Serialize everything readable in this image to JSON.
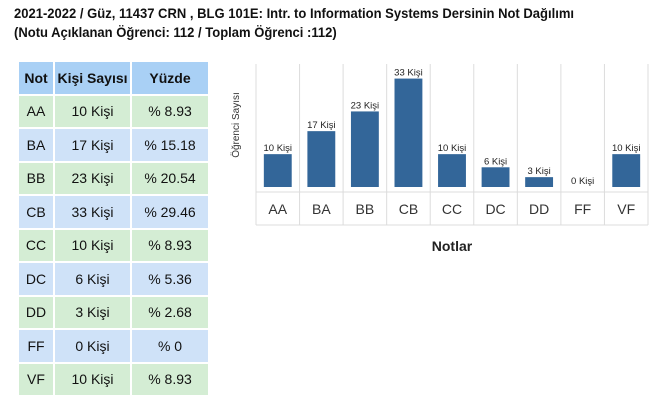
{
  "title": {
    "line1": "2021-2022 / Güz, 11437 CRN , BLG 101E: Intr. to Information Systems Dersinin Not Dağılımı",
    "line2": "(Notu Açıklanan Öğrenci: 112 / Toplam Öğrenci :112)"
  },
  "table": {
    "headers": [
      "Not",
      "Kişi Sayısı",
      "Yüzde"
    ],
    "rows": [
      {
        "grade": "AA",
        "count": "10 Kişi",
        "percent": "% 8.93"
      },
      {
        "grade": "BA",
        "count": "17 Kişi",
        "percent": "% 15.18"
      },
      {
        "grade": "BB",
        "count": "23 Kişi",
        "percent": "% 20.54"
      },
      {
        "grade": "CB",
        "count": "33 Kişi",
        "percent": "% 29.46"
      },
      {
        "grade": "CC",
        "count": "10 Kişi",
        "percent": "% 8.93"
      },
      {
        "grade": "DC",
        "count": "6 Kişi",
        "percent": "% 5.36"
      },
      {
        "grade": "DD",
        "count": "3 Kişi",
        "percent": "% 2.68"
      },
      {
        "grade": "FF",
        "count": "0 Kişi",
        "percent": "% 0"
      },
      {
        "grade": "VF",
        "count": "10 Kişi",
        "percent": "% 8.93"
      }
    ]
  },
  "chart_data": {
    "type": "bar",
    "categories": [
      "AA",
      "BA",
      "BB",
      "CB",
      "CC",
      "DC",
      "DD",
      "FF",
      "VF"
    ],
    "values": [
      10,
      17,
      23,
      33,
      10,
      6,
      3,
      0,
      10
    ],
    "data_labels": [
      "10 Kişi",
      "17 Kişi",
      "23 Kişi",
      "33 Kişi",
      "10 Kişi",
      "6 Kişi",
      "3 Kişi",
      "0 Kişi",
      "10 Kişi"
    ],
    "xlabel": "Notlar",
    "ylabel": "Öğrenci Sayısı",
    "ylim": [
      0,
      35
    ],
    "bar_color": "#336699",
    "grid": "vertical",
    "legend": "none"
  },
  "colors": {
    "header_bg": "#a9d0f5",
    "row_green": "#d4edd4",
    "row_blue": "#cfe2f8"
  }
}
